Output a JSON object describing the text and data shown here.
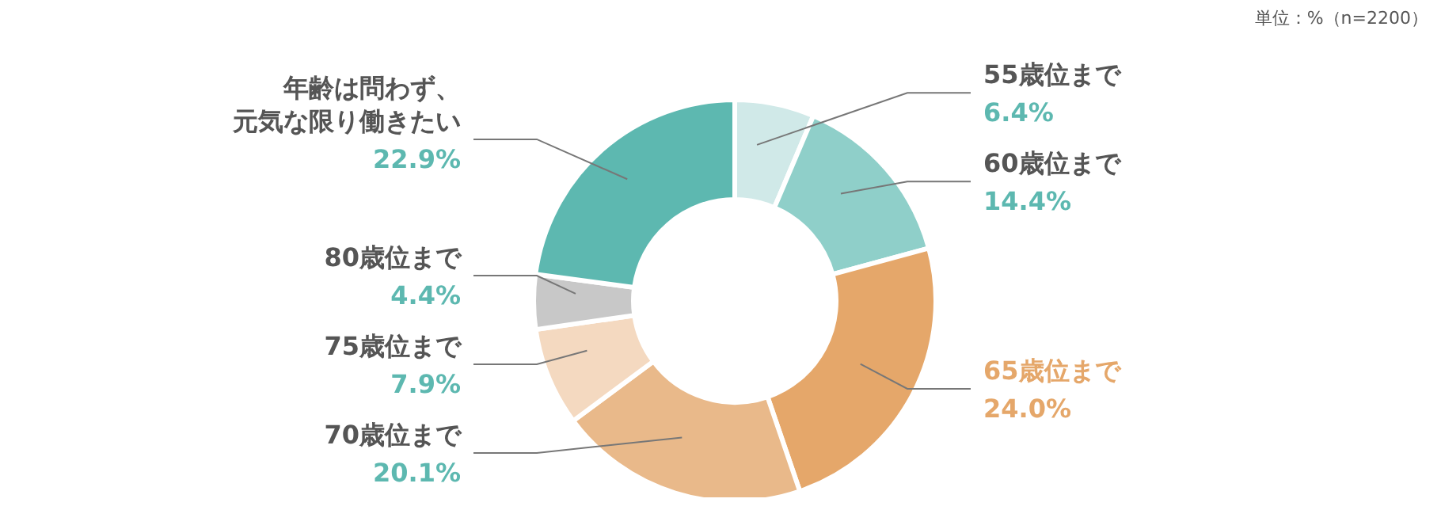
{
  "chart_data": {
    "type": "donut",
    "categories": [
      "55歳位まで",
      "60歳位まで",
      "65歳位まで",
      "70歳位まで",
      "75歳位まで",
      "80歳位まで",
      "年齢は問わず、元気な限り働きたい"
    ],
    "values": [
      6.4,
      14.4,
      24.0,
      20.1,
      7.9,
      4.4,
      22.9
    ],
    "colors": [
      "#d0e9e8",
      "#8fcfc9",
      "#e5a76a",
      "#e9b98a",
      "#f4d9c0",
      "#c8c8c8",
      "#5db8b0"
    ],
    "value_labels": [
      "6.4%",
      "14.4%",
      "24.0%",
      "20.1%",
      "7.9%",
      "4.4%",
      "22.9%"
    ],
    "annotations": [
      "単位：%（n=2200）"
    ]
  }
}
